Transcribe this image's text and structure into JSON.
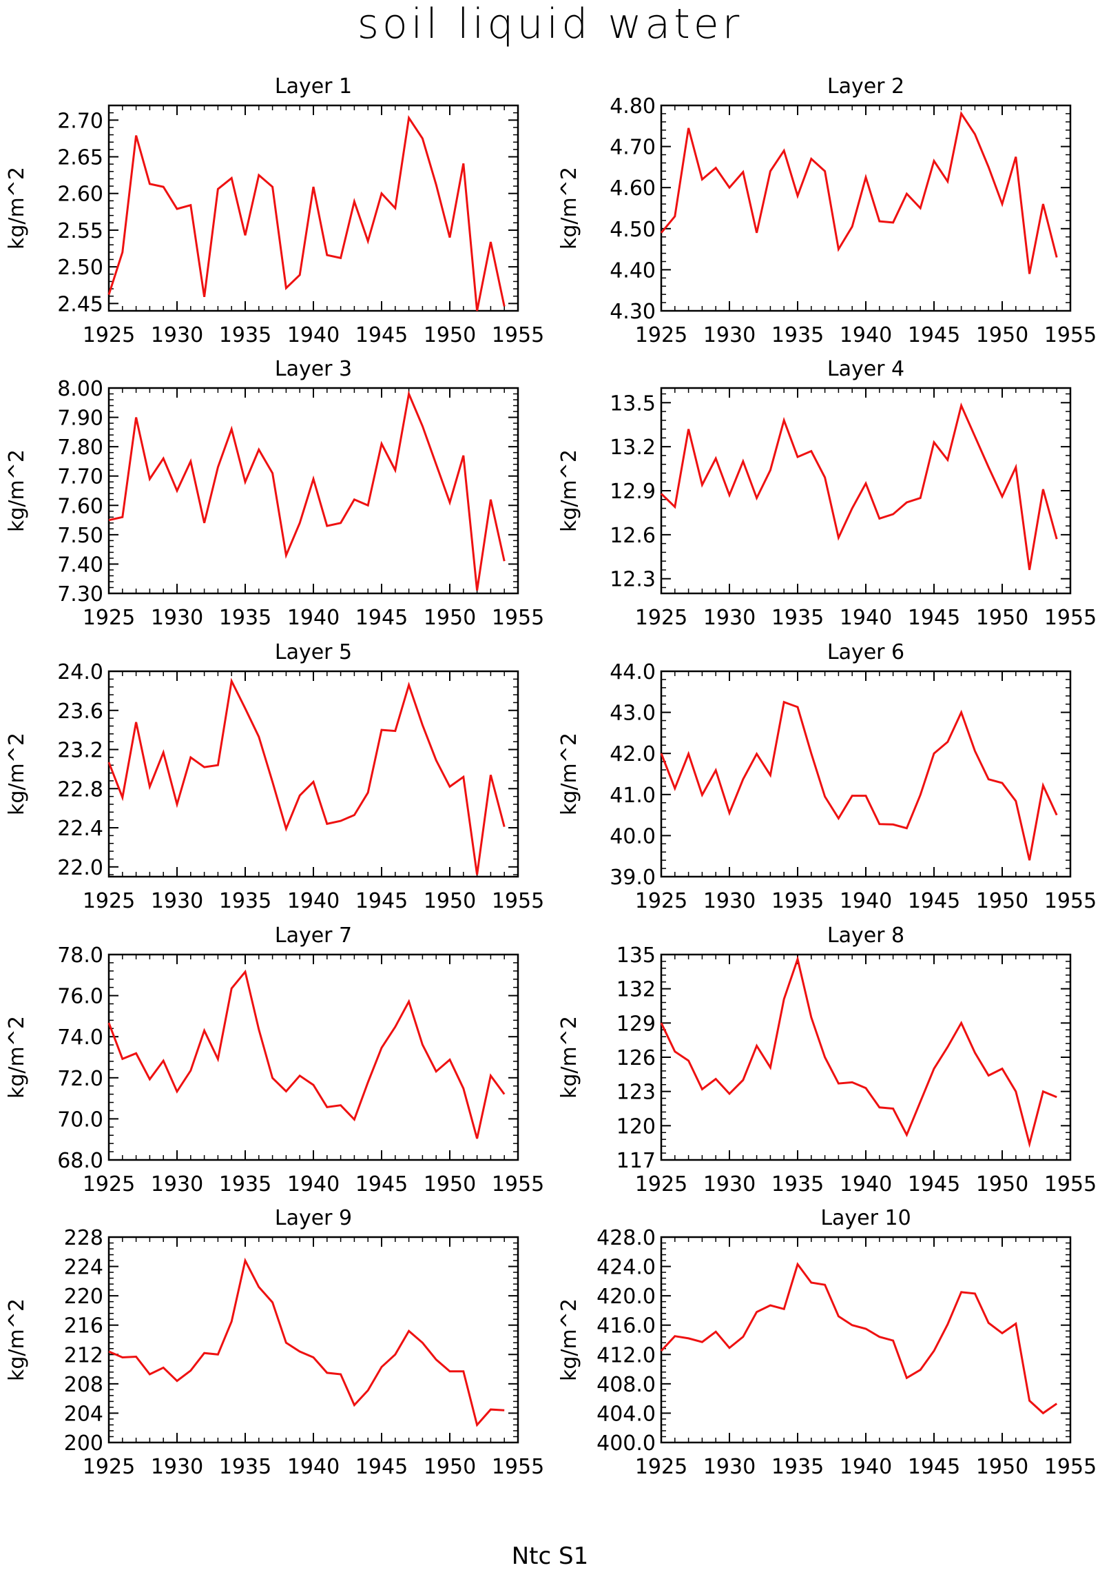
{
  "title": "soil liquid water",
  "footer": "Ntc S1",
  "colors": {
    "line": "#ee1111",
    "axis": "#000000"
  },
  "chart_data": [
    {
      "type": "line",
      "title": "Layer 1",
      "ylabel": "kg/m^2",
      "xlim": [
        1925,
        1955
      ],
      "xticks": [
        1925,
        1930,
        1935,
        1940,
        1945,
        1950,
        1955
      ],
      "ylim": [
        2.44,
        2.72
      ],
      "yticks": [
        2.45,
        2.5,
        2.55,
        2.6,
        2.65,
        2.7
      ],
      "ydecimals": 2,
      "x": [
        1925,
        1926,
        1927,
        1928,
        1929,
        1930,
        1931,
        1932,
        1933,
        1934,
        1935,
        1936,
        1937,
        1938,
        1939,
        1940,
        1941,
        1942,
        1943,
        1944,
        1945,
        1946,
        1947,
        1948,
        1949,
        1950,
        1951,
        1952,
        1953,
        1954
      ],
      "y": [
        2.462,
        2.52,
        2.679,
        2.613,
        2.609,
        2.579,
        2.584,
        2.459,
        2.606,
        2.621,
        2.543,
        2.625,
        2.609,
        2.471,
        2.489,
        2.609,
        2.516,
        2.512,
        2.589,
        2.535,
        2.6,
        2.58,
        2.703,
        2.675,
        2.612,
        2.54,
        2.641,
        2.44,
        2.534,
        2.446
      ]
    },
    {
      "type": "line",
      "title": "Layer 2",
      "ylabel": "kg/m^2",
      "xlim": [
        1925,
        1955
      ],
      "xticks": [
        1925,
        1930,
        1935,
        1940,
        1945,
        1950,
        1955
      ],
      "ylim": [
        4.3,
        4.8
      ],
      "yticks": [
        4.3,
        4.4,
        4.5,
        4.6,
        4.7,
        4.8
      ],
      "ydecimals": 2,
      "x": [
        1925,
        1926,
        1927,
        1928,
        1929,
        1930,
        1931,
        1932,
        1933,
        1934,
        1935,
        1936,
        1937,
        1938,
        1939,
        1940,
        1941,
        1942,
        1943,
        1944,
        1945,
        1946,
        1947,
        1948,
        1949,
        1950,
        1951,
        1952,
        1953,
        1954
      ],
      "y": [
        4.49,
        4.53,
        4.745,
        4.62,
        4.648,
        4.6,
        4.638,
        4.49,
        4.64,
        4.69,
        4.58,
        4.67,
        4.64,
        4.45,
        4.505,
        4.625,
        4.518,
        4.515,
        4.585,
        4.55,
        4.665,
        4.615,
        4.78,
        4.73,
        4.65,
        4.56,
        4.675,
        4.39,
        4.56,
        4.43
      ]
    },
    {
      "type": "line",
      "title": "Layer 3",
      "ylabel": "kg/m^2",
      "xlim": [
        1925,
        1955
      ],
      "xticks": [
        1925,
        1930,
        1935,
        1940,
        1945,
        1950,
        1955
      ],
      "ylim": [
        7.3,
        8.0
      ],
      "yticks": [
        7.3,
        7.4,
        7.5,
        7.6,
        7.7,
        7.8,
        7.9,
        8.0
      ],
      "ydecimals": 2,
      "x": [
        1925,
        1926,
        1927,
        1928,
        1929,
        1930,
        1931,
        1932,
        1933,
        1934,
        1935,
        1936,
        1937,
        1938,
        1939,
        1940,
        1941,
        1942,
        1943,
        1944,
        1945,
        1946,
        1947,
        1948,
        1949,
        1950,
        1951,
        1952,
        1953,
        1954
      ],
      "y": [
        7.55,
        7.56,
        7.9,
        7.69,
        7.76,
        7.65,
        7.75,
        7.54,
        7.73,
        7.86,
        7.68,
        7.79,
        7.71,
        7.43,
        7.54,
        7.69,
        7.53,
        7.54,
        7.62,
        7.6,
        7.81,
        7.72,
        7.98,
        7.87,
        7.74,
        7.61,
        7.77,
        7.31,
        7.62,
        7.41
      ]
    },
    {
      "type": "line",
      "title": "Layer 4",
      "ylabel": "kg/m^2",
      "xlim": [
        1925,
        1955
      ],
      "xticks": [
        1925,
        1930,
        1935,
        1940,
        1945,
        1950,
        1955
      ],
      "ylim": [
        12.2,
        13.6
      ],
      "yticks": [
        12.3,
        12.6,
        12.9,
        13.2,
        13.5
      ],
      "ydecimals": 1,
      "x": [
        1925,
        1926,
        1927,
        1928,
        1929,
        1930,
        1931,
        1932,
        1933,
        1934,
        1935,
        1936,
        1937,
        1938,
        1939,
        1940,
        1941,
        1942,
        1943,
        1944,
        1945,
        1946,
        1947,
        1948,
        1949,
        1950,
        1951,
        1952,
        1953,
        1954
      ],
      "y": [
        12.88,
        12.79,
        13.32,
        12.94,
        13.12,
        12.87,
        13.1,
        12.85,
        13.04,
        13.38,
        13.13,
        13.17,
        12.99,
        12.58,
        12.78,
        12.95,
        12.71,
        12.74,
        12.82,
        12.85,
        13.23,
        13.11,
        13.48,
        13.27,
        13.06,
        12.86,
        13.06,
        12.36,
        12.91,
        12.57
      ]
    },
    {
      "type": "line",
      "title": "Layer 5",
      "ylabel": "kg/m^2",
      "xlim": [
        1925,
        1955
      ],
      "xticks": [
        1925,
        1930,
        1935,
        1940,
        1945,
        1950,
        1955
      ],
      "ylim": [
        21.9,
        24.0
      ],
      "yticks": [
        22.0,
        22.4,
        22.8,
        23.2,
        23.6,
        24.0
      ],
      "ydecimals": 1,
      "x": [
        1925,
        1926,
        1927,
        1928,
        1929,
        1930,
        1931,
        1932,
        1933,
        1934,
        1935,
        1936,
        1937,
        1938,
        1939,
        1940,
        1941,
        1942,
        1943,
        1944,
        1945,
        1946,
        1947,
        1948,
        1949,
        1950,
        1951,
        1952,
        1953,
        1954
      ],
      "y": [
        23.07,
        22.71,
        23.48,
        22.82,
        23.17,
        22.64,
        23.12,
        23.02,
        23.04,
        23.9,
        23.62,
        23.33,
        22.87,
        22.39,
        22.73,
        22.87,
        22.44,
        22.47,
        22.53,
        22.76,
        23.4,
        23.39,
        23.86,
        23.45,
        23.09,
        22.82,
        22.92,
        21.92,
        22.94,
        22.41
      ]
    },
    {
      "type": "line",
      "title": "Layer 6",
      "ylabel": "kg/m^2",
      "xlim": [
        1925,
        1955
      ],
      "xticks": [
        1925,
        1930,
        1935,
        1940,
        1945,
        1950,
        1955
      ],
      "ylim": [
        39.0,
        44.0
      ],
      "yticks": [
        39.0,
        40.0,
        41.0,
        42.0,
        43.0,
        44.0
      ],
      "ydecimals": 1,
      "x": [
        1925,
        1926,
        1927,
        1928,
        1929,
        1930,
        1931,
        1932,
        1933,
        1934,
        1935,
        1936,
        1937,
        1938,
        1939,
        1940,
        1941,
        1942,
        1943,
        1944,
        1945,
        1946,
        1947,
        1948,
        1949,
        1950,
        1951,
        1952,
        1953,
        1954
      ],
      "y": [
        42.0,
        41.15,
        41.99,
        40.99,
        41.59,
        40.55,
        41.37,
        41.99,
        41.47,
        43.25,
        43.13,
        42.0,
        40.95,
        40.42,
        40.97,
        40.97,
        40.28,
        40.27,
        40.18,
        40.99,
        42.0,
        42.28,
        43.0,
        42.06,
        41.37,
        41.28,
        40.84,
        39.4,
        41.22,
        40.5
      ]
    },
    {
      "type": "line",
      "title": "Layer 7",
      "ylabel": "kg/m^2",
      "xlim": [
        1925,
        1955
      ],
      "xticks": [
        1925,
        1930,
        1935,
        1940,
        1945,
        1950,
        1955
      ],
      "ylim": [
        68.0,
        78.0
      ],
      "yticks": [
        68.0,
        70.0,
        72.0,
        74.0,
        76.0,
        78.0
      ],
      "ydecimals": 1,
      "x": [
        1925,
        1926,
        1927,
        1928,
        1929,
        1930,
        1931,
        1932,
        1933,
        1934,
        1935,
        1936,
        1937,
        1938,
        1939,
        1940,
        1941,
        1942,
        1943,
        1944,
        1945,
        1946,
        1947,
        1948,
        1949,
        1950,
        1951,
        1952,
        1953,
        1954
      ],
      "y": [
        74.67,
        72.92,
        73.19,
        71.93,
        72.83,
        71.33,
        72.35,
        74.3,
        72.91,
        76.35,
        77.16,
        74.35,
        71.99,
        71.34,
        72.1,
        71.65,
        70.57,
        70.66,
        69.97,
        71.78,
        73.46,
        74.48,
        75.71,
        73.61,
        72.31,
        72.88,
        71.48,
        69.04,
        72.1,
        71.2
      ]
    },
    {
      "type": "line",
      "title": "Layer 8",
      "ylabel": "kg/m^2",
      "xlim": [
        1925,
        1955
      ],
      "xticks": [
        1925,
        1930,
        1935,
        1940,
        1945,
        1950,
        1955
      ],
      "ylim": [
        117,
        135
      ],
      "yticks": [
        117,
        120,
        123,
        126,
        129,
        132,
        135
      ],
      "ydecimals": 0,
      "x": [
        1925,
        1926,
        1927,
        1928,
        1929,
        1930,
        1931,
        1932,
        1933,
        1934,
        1935,
        1936,
        1937,
        1938,
        1939,
        1940,
        1941,
        1942,
        1943,
        1944,
        1945,
        1946,
        1947,
        1948,
        1949,
        1950,
        1951,
        1952,
        1953,
        1954
      ],
      "y": [
        129.0,
        126.5,
        125.7,
        123.2,
        124.1,
        122.8,
        124.0,
        127.0,
        125.1,
        131.1,
        134.6,
        129.5,
        126.0,
        123.7,
        123.8,
        123.3,
        121.6,
        121.5,
        119.2,
        122.1,
        125.0,
        126.9,
        129.0,
        126.4,
        124.4,
        125.0,
        123.0,
        118.4,
        123.0,
        122.5
      ]
    },
    {
      "type": "line",
      "title": "Layer 9",
      "ylabel": "kg/m^2",
      "xlim": [
        1925,
        1955
      ],
      "xticks": [
        1925,
        1930,
        1935,
        1940,
        1945,
        1950,
        1955
      ],
      "ylim": [
        200,
        228
      ],
      "yticks": [
        200,
        204,
        208,
        212,
        216,
        220,
        224,
        228
      ],
      "ydecimals": 0,
      "x": [
        1925,
        1926,
        1927,
        1928,
        1929,
        1930,
        1931,
        1932,
        1933,
        1934,
        1935,
        1936,
        1937,
        1938,
        1939,
        1940,
        1941,
        1942,
        1943,
        1944,
        1945,
        1946,
        1947,
        1948,
        1949,
        1950,
        1951,
        1952,
        1953,
        1954
      ],
      "y": [
        212.4,
        211.6,
        211.7,
        209.3,
        210.2,
        208.4,
        209.8,
        212.2,
        212.0,
        216.5,
        224.8,
        221.2,
        219.1,
        213.6,
        212.4,
        211.6,
        209.5,
        209.3,
        205.1,
        207.1,
        210.3,
        212.0,
        215.2,
        213.6,
        211.3,
        209.7,
        209.7,
        202.4,
        204.5,
        204.4
      ]
    },
    {
      "type": "line",
      "title": "Layer 10",
      "ylabel": "kg/m^2",
      "xlim": [
        1925,
        1955
      ],
      "xticks": [
        1925,
        1930,
        1935,
        1940,
        1945,
        1950,
        1955
      ],
      "ylim": [
        400,
        428
      ],
      "yticks": [
        400,
        404,
        408,
        412,
        416,
        420,
        424,
        428
      ],
      "ydecimals": 1,
      "x": [
        1925,
        1926,
        1927,
        1928,
        1929,
        1930,
        1931,
        1932,
        1933,
        1934,
        1935,
        1936,
        1937,
        1938,
        1939,
        1940,
        1941,
        1942,
        1943,
        1944,
        1945,
        1946,
        1947,
        1948,
        1949,
        1950,
        1951,
        1952,
        1953,
        1954
      ],
      "y": [
        412.5,
        414.5,
        414.2,
        413.7,
        415.1,
        412.9,
        414.4,
        417.8,
        418.7,
        418.2,
        424.3,
        421.8,
        421.5,
        417.2,
        416.0,
        415.5,
        414.4,
        413.9,
        408.8,
        409.9,
        412.5,
        416.1,
        420.5,
        420.3,
        416.3,
        414.9,
        416.2,
        405.7,
        404.0,
        405.3
      ]
    }
  ]
}
